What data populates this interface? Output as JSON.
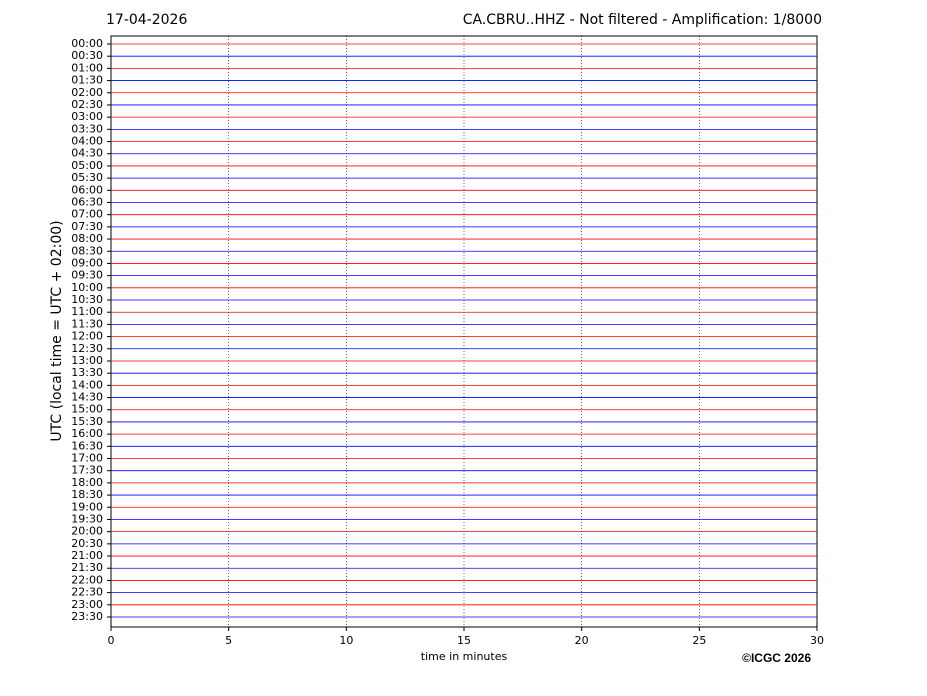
{
  "chart_data": {
    "type": "helicorder",
    "title_left": "17-04-2026",
    "title": "CA.CBRU..HHZ - Not filtered - Amplification: 1/8000",
    "xlabel": "time in minutes",
    "ylabel": "UTC (local time = UTC + 02:00)",
    "credit": "©ICGC 2026",
    "xlim": [
      0,
      30
    ],
    "xticks": [
      0,
      5,
      10,
      15,
      20,
      25,
      30
    ],
    "grid": true,
    "colors": [
      "#ff0000",
      "#0000ff"
    ],
    "categories": [
      "00:00",
      "00:30",
      "01:00",
      "01:30",
      "02:00",
      "02:30",
      "03:00",
      "03:30",
      "04:00",
      "04:30",
      "05:00",
      "05:30",
      "06:00",
      "06:30",
      "07:00",
      "07:30",
      "08:00",
      "08:30",
      "09:00",
      "09:30",
      "10:00",
      "10:30",
      "11:00",
      "11:30",
      "12:00",
      "12:30",
      "13:00",
      "13:30",
      "14:00",
      "14:30",
      "15:00",
      "15:30",
      "16:00",
      "16:30",
      "17:00",
      "17:30",
      "18:00",
      "18:30",
      "19:00",
      "19:30",
      "20:00",
      "20:30",
      "21:00",
      "21:30",
      "22:00",
      "22:30",
      "23:00",
      "23:30"
    ]
  }
}
